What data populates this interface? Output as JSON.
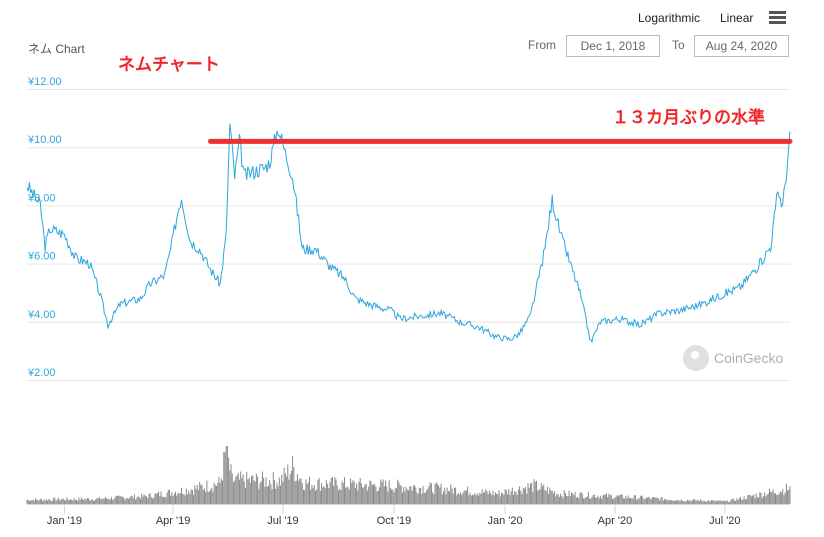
{
  "toolbar": {
    "log_label": "Logarithmic",
    "linear_label": "Linear",
    "menu_icon": "hamburger-icon"
  },
  "range": {
    "from_label": "From",
    "from_value": "Dec 1, 2018",
    "to_label": "To",
    "to_value": "Aug 24, 2020"
  },
  "chart_title": "ネム Chart",
  "annotations": {
    "title_jp": "ネムチャート",
    "level_note": "１３カ月ぶりの水準"
  },
  "watermark": "CoinGecko",
  "colors": {
    "line": "#2ea6dd",
    "annotation": "#f0262a",
    "volume": "#8a8a8a",
    "grid": "#e6e6e6"
  },
  "chart_data": {
    "type": "line",
    "title": "ネム Chart",
    "x_unit": "days since Dec 1, 2018",
    "xlim": [
      0,
      632
    ],
    "ylim": [
      2,
      12
    ],
    "y_ticks": [
      {
        "v": 12,
        "label": "¥12.00"
      },
      {
        "v": 10,
        "label": "¥10.00"
      },
      {
        "v": 8,
        "label": "¥8.00"
      },
      {
        "v": 6,
        "label": "¥6.00"
      },
      {
        "v": 4,
        "label": "¥4.00"
      },
      {
        "v": 2,
        "label": "¥2.00"
      }
    ],
    "x_ticks": [
      {
        "d": 31,
        "label": "Jan '19"
      },
      {
        "d": 121,
        "label": "Apr '19"
      },
      {
        "d": 212,
        "label": "Jul '19"
      },
      {
        "d": 304,
        "label": "Oct '19"
      },
      {
        "d": 396,
        "label": "Jan '20"
      },
      {
        "d": 487,
        "label": "Apr '20"
      },
      {
        "d": 578,
        "label": "Jul '20"
      }
    ],
    "price": [
      [
        0,
        8.7
      ],
      [
        11,
        8.0
      ],
      [
        15,
        6.6
      ],
      [
        19,
        7.2
      ],
      [
        31,
        7.0
      ],
      [
        40,
        6.2
      ],
      [
        52,
        6.0
      ],
      [
        60,
        5.0
      ],
      [
        67,
        3.9
      ],
      [
        77,
        4.6
      ],
      [
        94,
        4.8
      ],
      [
        102,
        5.3
      ],
      [
        114,
        5.6
      ],
      [
        119,
        6.5
      ],
      [
        125,
        7.8
      ],
      [
        128,
        8.3
      ],
      [
        135,
        6.8
      ],
      [
        143,
        6.5
      ],
      [
        152,
        5.8
      ],
      [
        160,
        5.3
      ],
      [
        165,
        7.0
      ],
      [
        168,
        10.8
      ],
      [
        172,
        9.0
      ],
      [
        176,
        10.2
      ],
      [
        180,
        9.0
      ],
      [
        189,
        9.2
      ],
      [
        197,
        9.3
      ],
      [
        201,
        9.5
      ],
      [
        208,
        10.7
      ],
      [
        214,
        9.8
      ],
      [
        220,
        9.0
      ],
      [
        225,
        7.5
      ],
      [
        228,
        6.5
      ],
      [
        239,
        6.5
      ],
      [
        251,
        5.9
      ],
      [
        263,
        5.5
      ],
      [
        272,
        4.8
      ],
      [
        284,
        4.6
      ],
      [
        301,
        4.4
      ],
      [
        309,
        4.1
      ],
      [
        326,
        4.2
      ],
      [
        342,
        4.3
      ],
      [
        359,
        4.0
      ],
      [
        375,
        3.8
      ],
      [
        388,
        3.5
      ],
      [
        400,
        3.4
      ],
      [
        408,
        3.6
      ],
      [
        417,
        4.2
      ],
      [
        429,
        6.5
      ],
      [
        435,
        8.2
      ],
      [
        442,
        7.0
      ],
      [
        450,
        6.0
      ],
      [
        458,
        5.0
      ],
      [
        467,
        3.3
      ],
      [
        475,
        4.0
      ],
      [
        491,
        4.1
      ],
      [
        508,
        3.9
      ],
      [
        524,
        4.3
      ],
      [
        541,
        4.4
      ],
      [
        558,
        4.6
      ],
      [
        574,
        4.9
      ],
      [
        591,
        5.2
      ],
      [
        607,
        6.0
      ],
      [
        616,
        6.6
      ],
      [
        622,
        8.5
      ],
      [
        626,
        8.0
      ],
      [
        632,
        10.3
      ]
    ],
    "volume_envelope": [
      [
        0,
        0.08
      ],
      [
        60,
        0.1
      ],
      [
        100,
        0.15
      ],
      [
        140,
        0.3
      ],
      [
        160,
        0.4
      ],
      [
        165,
        1.0
      ],
      [
        170,
        0.45
      ],
      [
        210,
        0.45
      ],
      [
        220,
        0.7
      ],
      [
        230,
        0.4
      ],
      [
        300,
        0.35
      ],
      [
        340,
        0.3
      ],
      [
        390,
        0.2
      ],
      [
        420,
        0.35
      ],
      [
        440,
        0.2
      ],
      [
        500,
        0.13
      ],
      [
        540,
        0.08
      ],
      [
        580,
        0.05
      ],
      [
        600,
        0.15
      ],
      [
        632,
        0.3
      ]
    ],
    "reference_line": {
      "value": 10.2,
      "from_day": 152,
      "to_day": 632,
      "label": "１３カ月ぶりの水準"
    }
  }
}
